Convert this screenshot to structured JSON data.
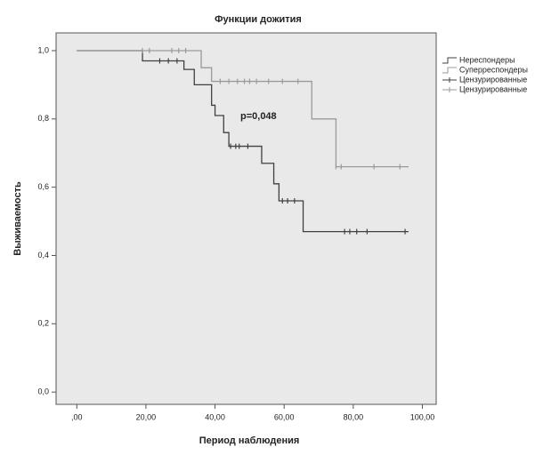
{
  "chart_data": {
    "type": "line",
    "step": "post",
    "title": "Функции дожития",
    "x_label": "Период наблюдения",
    "y_label": "Выживаемость",
    "annotation": "p=0,048",
    "xlim": [
      -6,
      104
    ],
    "ylim": [
      -0.036,
      1.052
    ],
    "xticks": [
      {
        "value": 0,
        "label": ",00"
      },
      {
        "value": 20,
        "label": "20,00"
      },
      {
        "value": 40,
        "label": "40,00"
      },
      {
        "value": 60,
        "label": "60,00"
      },
      {
        "value": 80,
        "label": "80,00"
      },
      {
        "value": 100,
        "label": "100,00"
      }
    ],
    "yticks": [
      {
        "value": 0,
        "label": "0,0"
      },
      {
        "value": 0.2,
        "label": "0,2"
      },
      {
        "value": 0.4,
        "label": "0,4"
      },
      {
        "value": 0.6,
        "label": "0,6"
      },
      {
        "value": 0.8,
        "label": "0,8"
      },
      {
        "value": 1.0,
        "label": "1,0"
      }
    ],
    "series": [
      {
        "name": "Нереспондеры",
        "color": "#404040",
        "line": true,
        "x": [
          0,
          19,
          31,
          34,
          39,
          40,
          42.5,
          44,
          53.5,
          57,
          58.5,
          65.5,
          96
        ],
        "values": [
          1.0,
          0.97,
          0.945,
          0.9,
          0.84,
          0.81,
          0.76,
          0.72,
          0.67,
          0.61,
          0.56,
          0.47,
          0.47
        ]
      },
      {
        "name": "Суперреспондеры",
        "color": "#9a9a9a",
        "line": true,
        "x": [
          0,
          36,
          39,
          68,
          75,
          96
        ],
        "values": [
          1.0,
          0.95,
          0.91,
          0.8,
          0.66,
          0.66
        ]
      },
      {
        "name": "Цензурированные",
        "color": "#404040",
        "line": false,
        "marker": "+",
        "x": [
          24,
          26.5,
          29,
          44.5,
          46,
          47,
          49.5,
          59.5,
          61,
          63,
          77.5,
          79,
          81,
          84,
          95
        ],
        "values": [
          0.97,
          0.97,
          0.97,
          0.72,
          0.72,
          0.72,
          0.72,
          0.56,
          0.56,
          0.56,
          0.47,
          0.47,
          0.47,
          0.47,
          0.47
        ]
      },
      {
        "name": "Цензурированные",
        "color": "#9a9a9a",
        "line": false,
        "marker": "+",
        "x": [
          19,
          21,
          27.5,
          29.5,
          31.5,
          41.5,
          44,
          46.5,
          48.5,
          50,
          52,
          55.5,
          59.5,
          64,
          75,
          76.5,
          86,
          93.5
        ],
        "values": [
          1.0,
          1.0,
          1.0,
          1.0,
          1.0,
          0.91,
          0.91,
          0.91,
          0.91,
          0.91,
          0.91,
          0.91,
          0.91,
          0.91,
          0.66,
          0.66,
          0.66,
          0.66
        ]
      }
    ]
  }
}
